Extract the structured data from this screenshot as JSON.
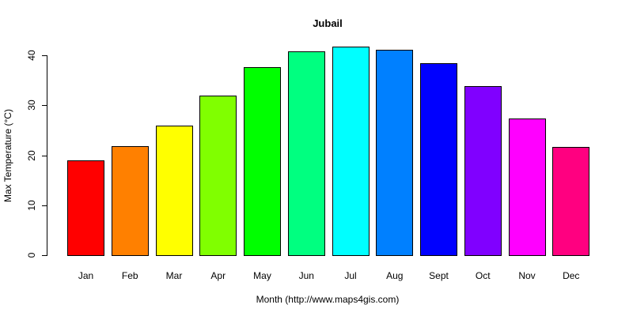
{
  "chart_data": {
    "type": "bar",
    "title": "Jubail",
    "xlabel": "Month (http://www.maps4gis.com)",
    "ylabel": "Max Temperature (°C)",
    "categories": [
      "Jan",
      "Feb",
      "Mar",
      "Apr",
      "May",
      "Jun",
      "Jul",
      "Aug",
      "Sept",
      "Oct",
      "Nov",
      "Dec"
    ],
    "values": [
      19.0,
      21.8,
      25.9,
      31.9,
      37.6,
      40.8,
      41.7,
      41.1,
      38.4,
      33.9,
      27.3,
      21.6
    ],
    "colors": [
      "#FF0000",
      "#FF8000",
      "#FFFF00",
      "#80FF00",
      "#00FF00",
      "#00FF80",
      "#00FFFF",
      "#0080FF",
      "#0000FF",
      "#8000FF",
      "#FF00FF",
      "#FF0080"
    ],
    "yticks": [
      0,
      10,
      20,
      30,
      40
    ],
    "ylim": [
      0,
      40
    ],
    "grid": false,
    "legend": null
  }
}
